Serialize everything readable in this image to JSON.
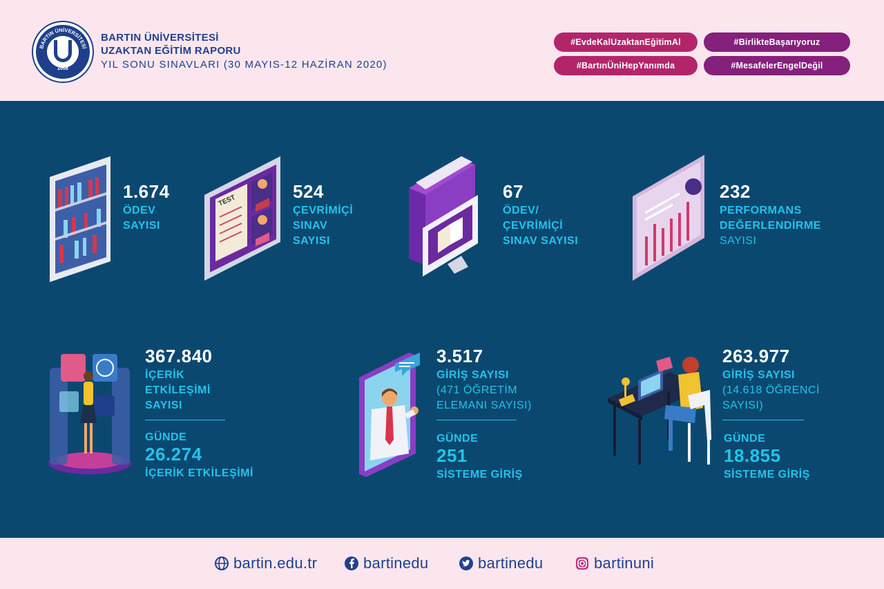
{
  "header": {
    "university": "BARTIN ÜNİVERSİTESİ",
    "report": "UZAKTAN EĞİTİM RAPORU",
    "period": "YIL SONU SINAVLARI (30 MAYIS-12 HAZİRAN 2020)",
    "logo_ring": "BARTIN ÜNİVERSİTESİ",
    "logo_year": "2008",
    "tags": [
      "#EvdeKalUzaktanEğitimAl",
      "#BirlikteBaşarıyoruz",
      "#BartınÜniHepYanımda",
      "#MesafelerEngelDeğil"
    ]
  },
  "stats_top": [
    {
      "number": "1.674",
      "line1": "ÖDEV",
      "line2": "SAYISI",
      "line3": ""
    },
    {
      "number": "524",
      "line1": "ÇEVRİMİÇİ",
      "line2": "SINAV",
      "line3": "SAYISI"
    },
    {
      "number": "67",
      "line1": "ÖDEV/",
      "line2": "ÇEVRİMİÇİ",
      "line3": "SINAV SAYISI"
    },
    {
      "number": "232",
      "line1": "PERFORMANS",
      "line2": "DEĞERLENDİRME",
      "line3": "SAYISI"
    }
  ],
  "stats_bottom": [
    {
      "number": "367.840",
      "line1": "İÇERİK",
      "line2": "ETKİLEŞİMİ",
      "line3": "SAYISI",
      "daily_label": "GÜNDE",
      "daily_value": "26.274",
      "daily_unit": "İÇERİK ETKİLEŞİMİ"
    },
    {
      "number": "3.517",
      "line1": "GİRİŞ SAYISI",
      "line2": "(471 ÖĞRETİM",
      "line3": "ELEMANI SAYISI)",
      "daily_label": "GÜNDE",
      "daily_value": "251",
      "daily_unit": "SİSTEME GİRİŞ"
    },
    {
      "number": "263.977",
      "line1": "GİRİŞ SAYISI",
      "line2": "(14.618 ÖĞRENCİ",
      "line3": "SAYISI)",
      "daily_label": "GÜNDE",
      "daily_value": "18.855",
      "daily_unit": "SİSTEME GİRİŞ"
    }
  ],
  "illustration_text": {
    "test_sheet": "TEST"
  },
  "footer": {
    "website": "bartin.edu.tr",
    "facebook": "bartinedu",
    "twitter": "bartinedu",
    "instagram": "bartinuni"
  },
  "colors": {
    "header_bg": "#fbe6ee",
    "main_bg": "#0b4870",
    "accent_cyan": "#22c3ea",
    "brand_blue": "#22408d",
    "tag_magenta": "#b3256a",
    "tag_purple": "#85207c"
  }
}
